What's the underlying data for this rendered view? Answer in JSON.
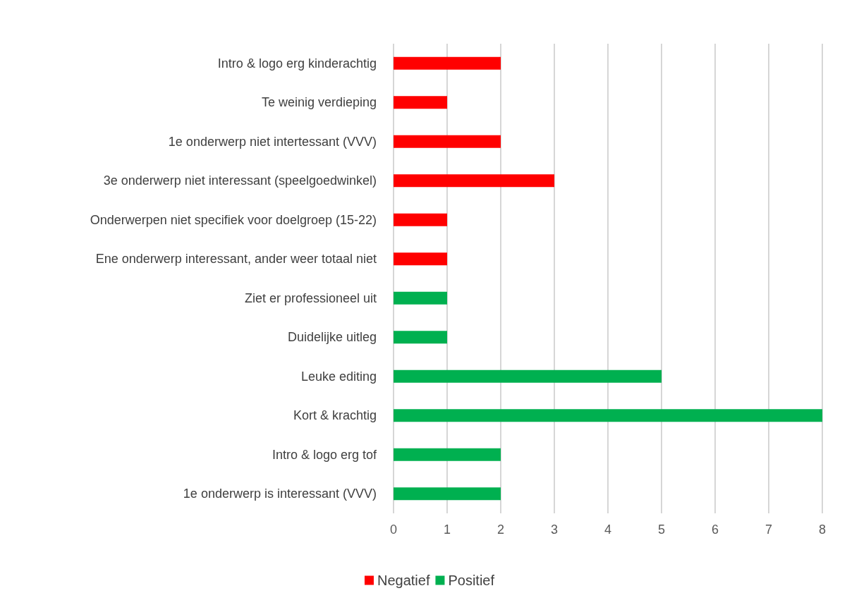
{
  "chart_data": {
    "type": "bar",
    "orientation": "horizontal",
    "categories": [
      "Intro & logo erg kinderachtig",
      "Te weinig verdieping",
      "1e onderwerp niet intertessant (VVV)",
      "3e onderwerp niet interessant (speelgoedwinkel)",
      "Onderwerpen niet specifiek voor doelgroep (15-22)",
      "Ene onderwerp interessant, ander weer totaal niet",
      "Ziet er professioneel uit",
      "Duidelijke uitleg",
      "Leuke editing",
      "Kort & krachtig",
      "Intro & logo erg tof",
      "1e onderwerp is interessant (VVV)"
    ],
    "series": [
      {
        "name": "Negatief",
        "color": "#ff0000",
        "values": [
          2,
          1,
          2,
          3,
          1,
          1,
          null,
          null,
          null,
          null,
          null,
          null
        ]
      },
      {
        "name": "Positief",
        "color": "#00b050",
        "values": [
          null,
          null,
          null,
          null,
          null,
          null,
          1,
          1,
          5,
          8,
          2,
          2
        ]
      }
    ],
    "xlim": [
      0,
      8
    ],
    "xticks": [
      0,
      1,
      2,
      3,
      4,
      5,
      6,
      7,
      8
    ],
    "grid": "x",
    "legend": "bottom"
  }
}
